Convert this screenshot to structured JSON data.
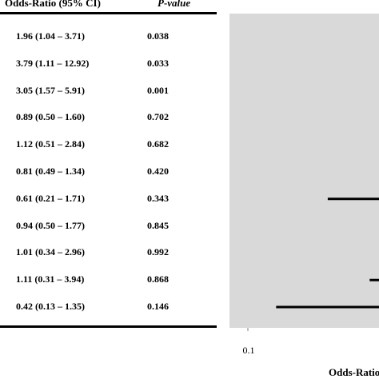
{
  "table": {
    "header_or": "Odds-Ratio (95% CI)",
    "header_p": "P-value"
  },
  "chart_data": {
    "type": "forest",
    "xscale": "log",
    "xlabel": "Odds-Ratio",
    "xticks": [
      "0.1"
    ],
    "rows": [
      {
        "label": "1.96 (1.04 – 3.71)",
        "or": 1.96,
        "lo": 1.04,
        "hi": 3.71,
        "p": "0.038"
      },
      {
        "label": "3.79 (1.11 – 12.92)",
        "or": 3.79,
        "lo": 1.11,
        "hi": 12.92,
        "p": "0.033"
      },
      {
        "label": "3.05 (1.57 – 5.91)",
        "or": 3.05,
        "lo": 1.57,
        "hi": 5.91,
        "p": "0.001"
      },
      {
        "label": "0.89 (0.50 – 1.60)",
        "or": 0.89,
        "lo": 0.5,
        "hi": 1.6,
        "p": "0.702"
      },
      {
        "label": "1.12 (0.51 – 2.84)",
        "or": 1.12,
        "lo": 0.51,
        "hi": 2.84,
        "p": "0.682"
      },
      {
        "label": "0.81 (0.49 – 1.34)",
        "or": 0.81,
        "lo": 0.49,
        "hi": 1.34,
        "p": "0.420"
      },
      {
        "label": "0.61 (0.21 – 1.71)",
        "or": 0.61,
        "lo": 0.21,
        "hi": 1.71,
        "p": "0.343"
      },
      {
        "label": "0.94 (0.50 – 1.77)",
        "or": 0.94,
        "lo": 0.5,
        "hi": 1.77,
        "p": "0.845"
      },
      {
        "label": "1.01 (0.34 – 2.96)",
        "or": 1.01,
        "lo": 0.34,
        "hi": 2.96,
        "p": "0.992"
      },
      {
        "label": "1.11 (0.31 – 3.94)",
        "or": 1.11,
        "lo": 0.31,
        "hi": 3.94,
        "p": "0.868"
      },
      {
        "label": "0.42 (0.13 – 1.35)",
        "or": 0.42,
        "lo": 0.13,
        "hi": 1.35,
        "p": "0.146"
      }
    ]
  },
  "colors": {
    "plot_background": "#d9d9d9",
    "marks": "#000000"
  }
}
